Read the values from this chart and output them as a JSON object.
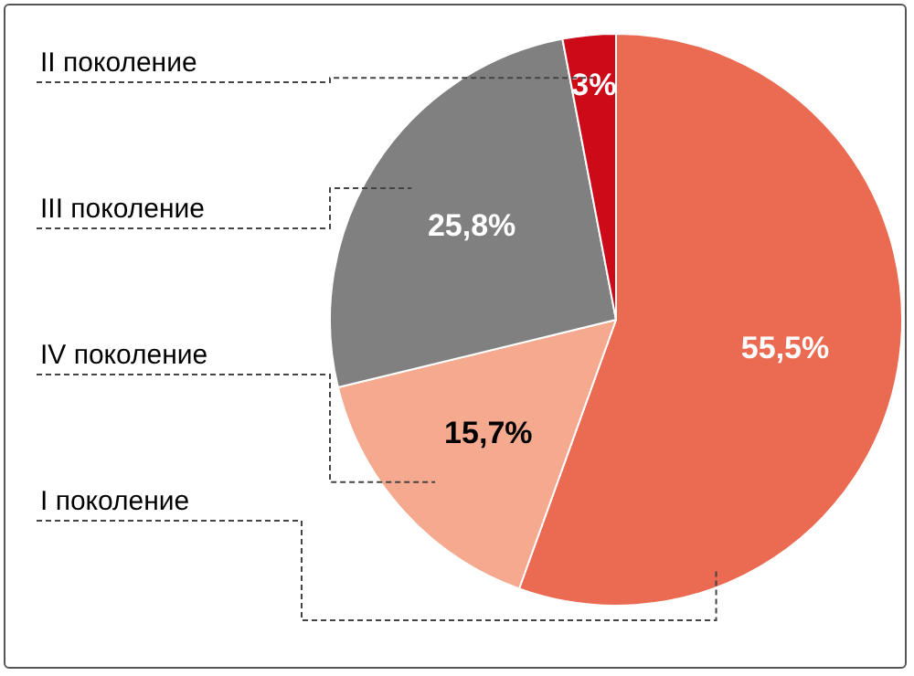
{
  "chart_data": {
    "type": "pie",
    "categories": [
      "I поколение",
      "IV поколение",
      "III поколение",
      "II поколение"
    ],
    "values": [
      55.5,
      15.7,
      25.8,
      3
    ],
    "colors": [
      "#ea6a52",
      "#f5a98e",
      "#808080",
      "#cc0a18"
    ],
    "value_labels": [
      "55,5%",
      "15,7%",
      "25,8%",
      "3%"
    ],
    "legend": false
  }
}
